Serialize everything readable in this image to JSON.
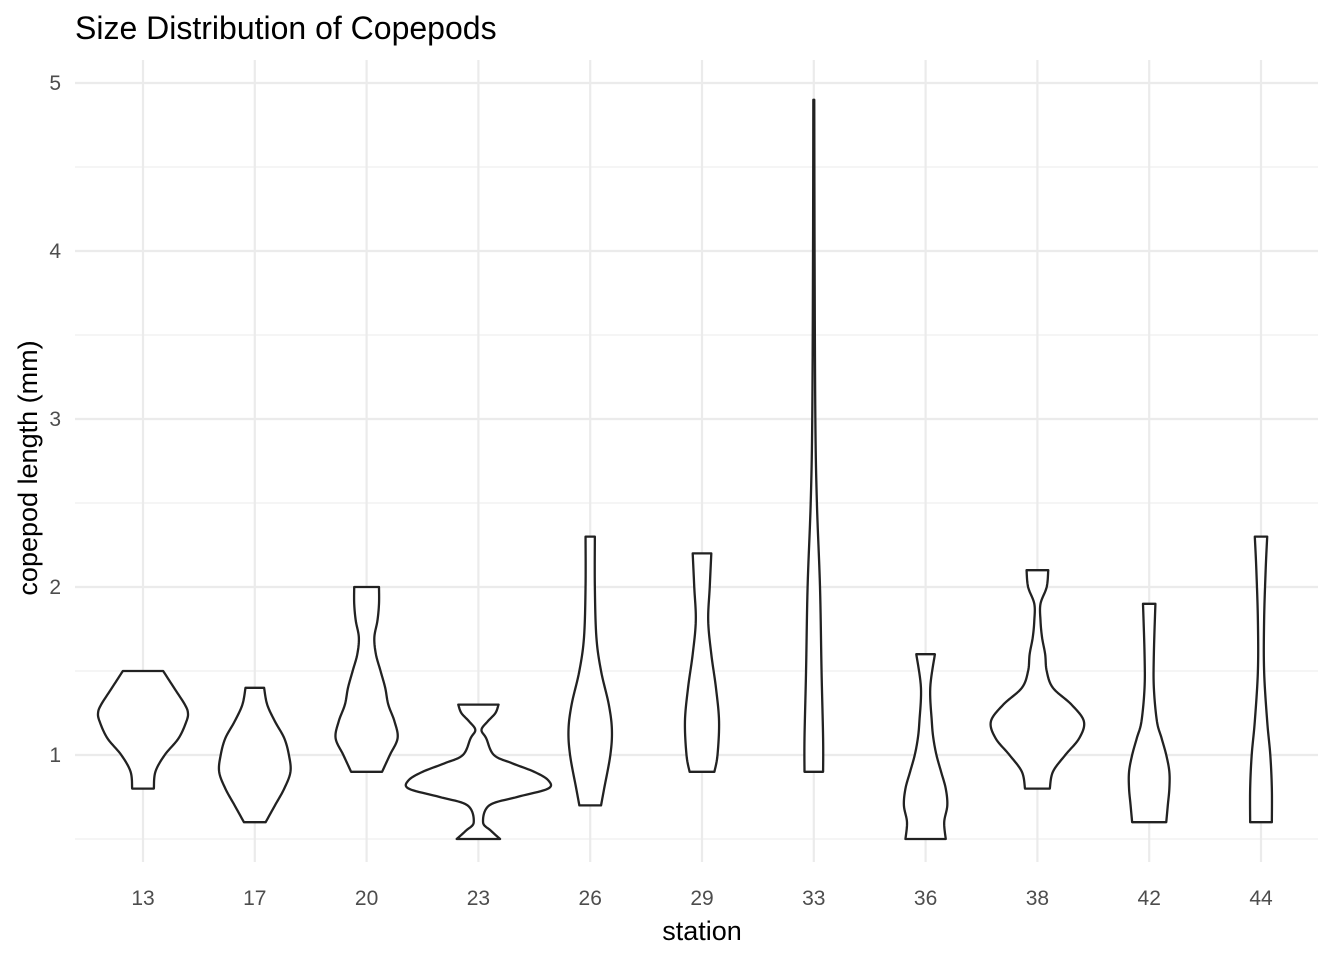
{
  "chart_data": {
    "type": "violin",
    "title": "Size Distribution of Copepods",
    "xlabel": "station",
    "ylabel": "copepod length (mm)",
    "ylim": [
      0.3,
      5.13
    ],
    "yticks": [
      1,
      2,
      3,
      4,
      5
    ],
    "grid": true,
    "categories": [
      "13",
      "17",
      "20",
      "23",
      "26",
      "29",
      "33",
      "36",
      "38",
      "42",
      "44"
    ],
    "series": [
      {
        "station": "13",
        "min": 0.8,
        "max": 1.5,
        "profile": [
          [
            0.8,
            0.07
          ],
          [
            0.9,
            0.08
          ],
          [
            1.0,
            0.14
          ],
          [
            1.1,
            0.23
          ],
          [
            1.2,
            0.28
          ],
          [
            1.25,
            0.29
          ],
          [
            1.3,
            0.27
          ],
          [
            1.4,
            0.2
          ],
          [
            1.5,
            0.13
          ]
        ]
      },
      {
        "station": "17",
        "min": 0.6,
        "max": 1.4,
        "profile": [
          [
            0.6,
            0.07
          ],
          [
            0.7,
            0.13
          ],
          [
            0.8,
            0.19
          ],
          [
            0.9,
            0.23
          ],
          [
            1.0,
            0.22
          ],
          [
            1.1,
            0.19
          ],
          [
            1.2,
            0.13
          ],
          [
            1.3,
            0.08
          ],
          [
            1.4,
            0.06
          ]
        ]
      },
      {
        "station": "20",
        "min": 0.9,
        "max": 2.0,
        "profile": [
          [
            0.9,
            0.1
          ],
          [
            1.0,
            0.15
          ],
          [
            1.1,
            0.2
          ],
          [
            1.2,
            0.18
          ],
          [
            1.3,
            0.14
          ],
          [
            1.4,
            0.12
          ],
          [
            1.5,
            0.09
          ],
          [
            1.6,
            0.06
          ],
          [
            1.7,
            0.05
          ],
          [
            1.8,
            0.07
          ],
          [
            1.9,
            0.08
          ],
          [
            2.0,
            0.08
          ]
        ]
      },
      {
        "station": "23",
        "min": 0.5,
        "max": 1.3,
        "profile": [
          [
            0.5,
            0.14
          ],
          [
            0.55,
            0.08
          ],
          [
            0.6,
            0.03
          ],
          [
            0.7,
            0.07
          ],
          [
            0.75,
            0.25
          ],
          [
            0.8,
            0.45
          ],
          [
            0.85,
            0.45
          ],
          [
            0.9,
            0.36
          ],
          [
            0.95,
            0.22
          ],
          [
            1.0,
            0.1
          ],
          [
            1.1,
            0.05
          ],
          [
            1.15,
            0.02
          ],
          [
            1.2,
            0.06
          ],
          [
            1.25,
            0.11
          ],
          [
            1.3,
            0.13
          ]
        ]
      },
      {
        "station": "26",
        "min": 0.7,
        "max": 2.3,
        "profile": [
          [
            0.7,
            0.07
          ],
          [
            0.8,
            0.09
          ],
          [
            1.0,
            0.13
          ],
          [
            1.15,
            0.14
          ],
          [
            1.3,
            0.12
          ],
          [
            1.5,
            0.07
          ],
          [
            1.7,
            0.04
          ],
          [
            2.0,
            0.03
          ],
          [
            2.3,
            0.03
          ]
        ]
      },
      {
        "station": "29",
        "min": 0.9,
        "max": 2.2,
        "profile": [
          [
            0.9,
            0.08
          ],
          [
            1.0,
            0.1
          ],
          [
            1.2,
            0.11
          ],
          [
            1.4,
            0.09
          ],
          [
            1.6,
            0.06
          ],
          [
            1.8,
            0.04
          ],
          [
            2.0,
            0.05
          ],
          [
            2.2,
            0.06
          ]
        ]
      },
      {
        "station": "33",
        "min": 0.9,
        "max": 4.9,
        "profile": [
          [
            0.9,
            0.06
          ],
          [
            1.1,
            0.06
          ],
          [
            1.5,
            0.05
          ],
          [
            2.0,
            0.04
          ],
          [
            2.5,
            0.02
          ],
          [
            3.0,
            0.01
          ],
          [
            4.0,
            0.005
          ],
          [
            4.9,
            0.003
          ]
        ]
      },
      {
        "station": "36",
        "min": 0.5,
        "max": 1.6,
        "profile": [
          [
            0.5,
            0.13
          ],
          [
            0.6,
            0.12
          ],
          [
            0.7,
            0.14
          ],
          [
            0.8,
            0.13
          ],
          [
            0.9,
            0.1
          ],
          [
            1.0,
            0.07
          ],
          [
            1.1,
            0.05
          ],
          [
            1.2,
            0.04
          ],
          [
            1.4,
            0.03
          ],
          [
            1.6,
            0.06
          ]
        ]
      },
      {
        "station": "38",
        "min": 0.8,
        "max": 2.1,
        "profile": [
          [
            0.8,
            0.08
          ],
          [
            0.9,
            0.1
          ],
          [
            1.0,
            0.18
          ],
          [
            1.1,
            0.27
          ],
          [
            1.2,
            0.3
          ],
          [
            1.3,
            0.22
          ],
          [
            1.4,
            0.1
          ],
          [
            1.5,
            0.06
          ],
          [
            1.6,
            0.05
          ],
          [
            1.7,
            0.03
          ],
          [
            1.8,
            0.02
          ],
          [
            1.9,
            0.02
          ],
          [
            2.0,
            0.06
          ],
          [
            2.1,
            0.07
          ]
        ]
      },
      {
        "station": "42",
        "min": 0.6,
        "max": 1.9,
        "profile": [
          [
            0.6,
            0.11
          ],
          [
            0.7,
            0.12
          ],
          [
            0.8,
            0.13
          ],
          [
            0.9,
            0.13
          ],
          [
            1.0,
            0.11
          ],
          [
            1.1,
            0.08
          ],
          [
            1.2,
            0.05
          ],
          [
            1.4,
            0.03
          ],
          [
            1.6,
            0.03
          ],
          [
            1.9,
            0.04
          ]
        ]
      },
      {
        "station": "44",
        "min": 0.6,
        "max": 2.3,
        "profile": [
          [
            0.6,
            0.07
          ],
          [
            0.8,
            0.07
          ],
          [
            1.0,
            0.06
          ],
          [
            1.2,
            0.04
          ],
          [
            1.5,
            0.02
          ],
          [
            1.8,
            0.02
          ],
          [
            2.1,
            0.03
          ],
          [
            2.3,
            0.04
          ]
        ]
      }
    ]
  }
}
